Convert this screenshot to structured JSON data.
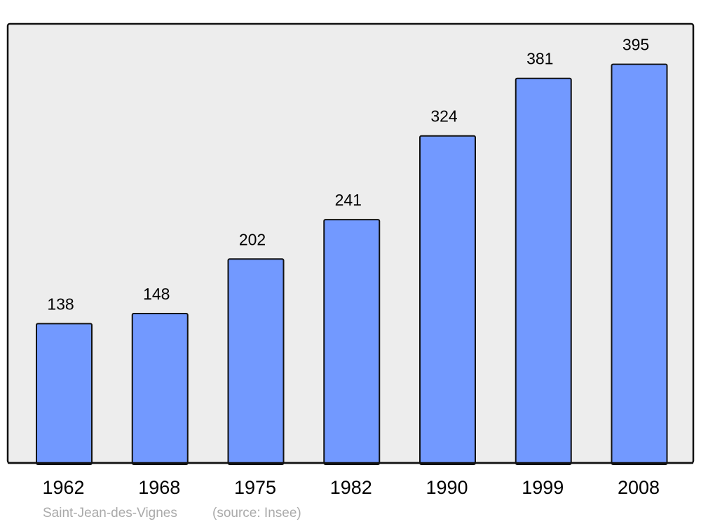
{
  "chart_data": {
    "type": "bar",
    "title": "",
    "xlabel": "",
    "ylabel": "",
    "categories": [
      "1962",
      "1968",
      "1975",
      "1982",
      "1990",
      "1999",
      "2008"
    ],
    "values": [
      138,
      148,
      202,
      241,
      324,
      381,
      395
    ],
    "ylim": [
      0,
      435
    ],
    "grid": false,
    "data_labels": true,
    "colors": {
      "bar": "#7299ff",
      "plot_background": "#ededed",
      "frame": "#111111",
      "caption": "#aaaaaa"
    }
  },
  "caption": {
    "place": "Saint-Jean-des-Vignes",
    "source": "(source: Insee)"
  }
}
